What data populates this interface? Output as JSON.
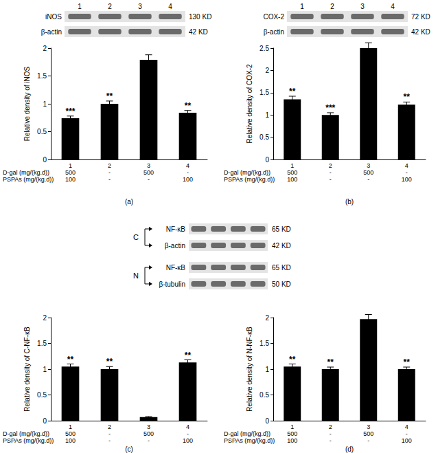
{
  "chart_data": [
    {
      "type": "bar",
      "title": "(a)",
      "y_label": "Relative density of iNOS",
      "categories": [
        "1",
        "2",
        "3",
        "4"
      ],
      "values": [
        0.74,
        1.0,
        1.79,
        0.84
      ],
      "errors": [
        0.04,
        0.05,
        0.09,
        0.04
      ],
      "significance": [
        "***",
        "**",
        null,
        "**"
      ],
      "color": "#000000",
      "ylim": [
        0,
        2
      ],
      "yticks": [
        0,
        0.5,
        1,
        1.5,
        2
      ],
      "grid": false,
      "treatments": [
        {
          "label": "D-gal (mg/(kg.d))",
          "values": [
            "500",
            "-",
            "500",
            "-"
          ]
        },
        {
          "label": "PSPAs (mg/(kg.d))",
          "values": [
            "100",
            "-",
            "-",
            "100"
          ]
        }
      ],
      "blot": {
        "lanes": [
          "1",
          "2",
          "3",
          "4"
        ],
        "groups": [
          {
            "rows": [
              {
                "label": "iNOS",
                "size": "130 KD"
              },
              {
                "label": "β-actin",
                "size": "42 KD"
              }
            ]
          }
        ]
      }
    },
    {
      "type": "bar",
      "title": "(b)",
      "y_label": "Relative density of COX-2",
      "categories": [
        "1",
        "2",
        "3",
        "4"
      ],
      "values": [
        1.35,
        1.0,
        2.5,
        1.23
      ],
      "errors": [
        0.07,
        0.05,
        0.12,
        0.06
      ],
      "significance": [
        "**",
        "***",
        null,
        "**"
      ],
      "color": "#000000",
      "ylim": [
        0,
        2.5
      ],
      "yticks": [
        0,
        0.5,
        1,
        1.5,
        2,
        2.5
      ],
      "grid": false,
      "treatments": [
        {
          "label": "D-gal (mg/(kg.d))",
          "values": [
            "500",
            "-",
            "500",
            "-"
          ]
        },
        {
          "label": "PSPAs (mg/(kg.d))",
          "values": [
            "100",
            "-",
            "-",
            "100"
          ]
        }
      ],
      "blot": {
        "lanes": [
          "1",
          "2",
          "3",
          "4"
        ],
        "groups": [
          {
            "rows": [
              {
                "label": "COX-2",
                "size": "72 KD"
              },
              {
                "label": "β-actin",
                "size": "42 KD"
              }
            ]
          }
        ]
      }
    },
    {
      "type": "bar",
      "title": "(c)",
      "y_label": "Relative density of C-NF-κB",
      "categories": [
        "1",
        "2",
        "3",
        "4"
      ],
      "values": [
        1.05,
        1.0,
        0.07,
        1.13
      ],
      "errors": [
        0.05,
        0.05,
        0.01,
        0.05
      ],
      "significance": [
        "**",
        "**",
        null,
        "**"
      ],
      "color": "#000000",
      "ylim": [
        0,
        2
      ],
      "yticks": [
        0,
        0.5,
        1,
        1.5,
        2
      ],
      "grid": false,
      "treatments": [
        {
          "label": "D-gal (mg/(kg.d))",
          "values": [
            "500",
            "-",
            "500",
            "-"
          ]
        },
        {
          "label": "PSPAs (mg/(kg.d))",
          "values": [
            "100",
            "-",
            "-",
            "100"
          ]
        }
      ],
      "blot": {
        "groups": [
          {
            "name": "C",
            "rows": [
              {
                "label": "NF-κB",
                "size": "65 KD"
              },
              {
                "label": "β-actin",
                "size": "42 KD"
              }
            ]
          },
          {
            "name": "N",
            "rows": [
              {
                "label": "NF-κB",
                "size": "65 KD"
              },
              {
                "label": "β-tubulin",
                "size": "50 KD"
              }
            ]
          }
        ]
      }
    },
    {
      "type": "bar",
      "title": "(d)",
      "y_label": "Relative density of N-NF-κB",
      "categories": [
        "1",
        "2",
        "3",
        "4"
      ],
      "values": [
        1.05,
        1.0,
        1.97,
        1.0
      ],
      "errors": [
        0.05,
        0.04,
        0.09,
        0.04
      ],
      "significance": [
        "**",
        "**",
        null,
        "**"
      ],
      "color": "#000000",
      "ylim": [
        0,
        2
      ],
      "yticks": [
        0,
        0.5,
        1,
        1.5,
        2
      ],
      "grid": false,
      "treatments": [
        {
          "label": "D-gal (mg/(kg.d))",
          "values": [
            "500",
            "-",
            "500",
            "-"
          ]
        },
        {
          "label": "PSPAs (mg/(kg.d))",
          "values": [
            "100",
            "-",
            "-",
            "100"
          ]
        }
      ]
    }
  ]
}
